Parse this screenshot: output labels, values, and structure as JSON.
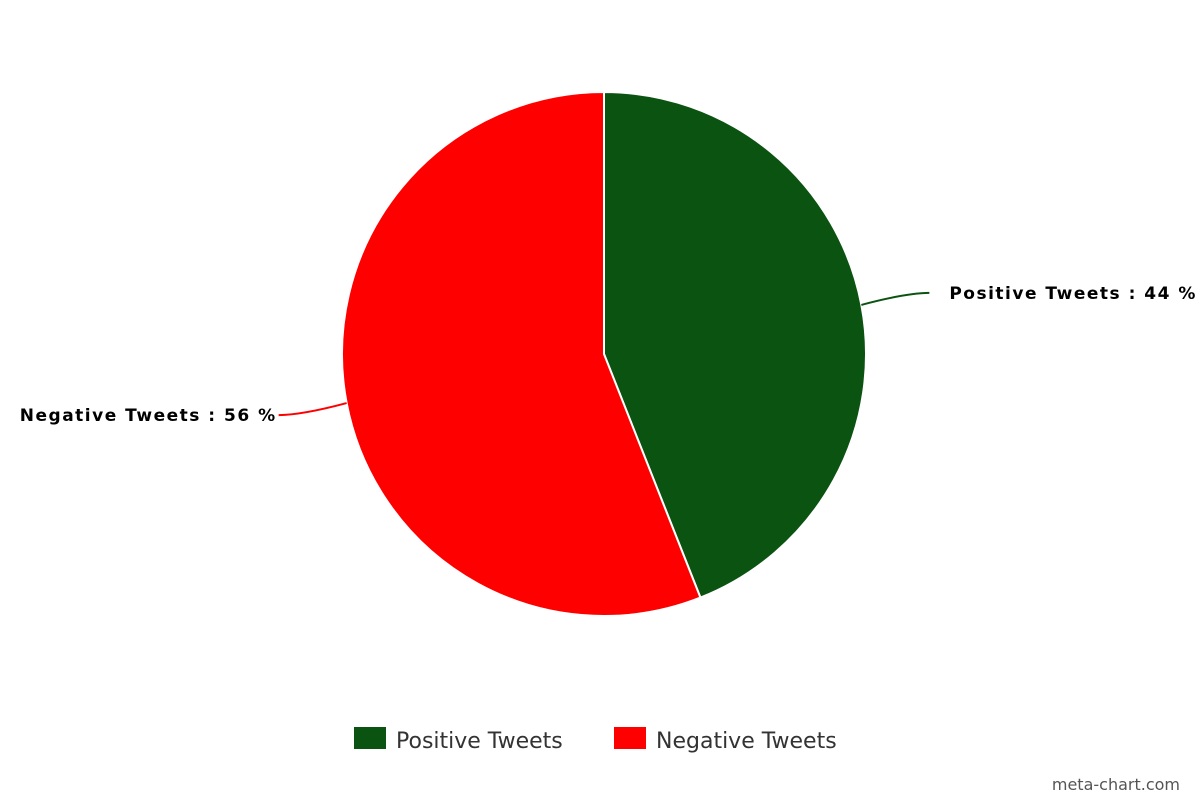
{
  "chart_data": {
    "type": "pie",
    "slices": [
      {
        "name": "Positive Tweets",
        "value": 44,
        "color": "#0b5311",
        "label": "Positive Tweets : 44 %"
      },
      {
        "name": "Negative Tweets",
        "value": 56,
        "color": "#ff0000",
        "label": "Negative Tweets : 56 %"
      }
    ],
    "legend": {
      "placement": "bottom-center",
      "entries": [
        "Positive Tweets",
        "Negative Tweets"
      ]
    }
  },
  "credit": "meta-chart.com"
}
